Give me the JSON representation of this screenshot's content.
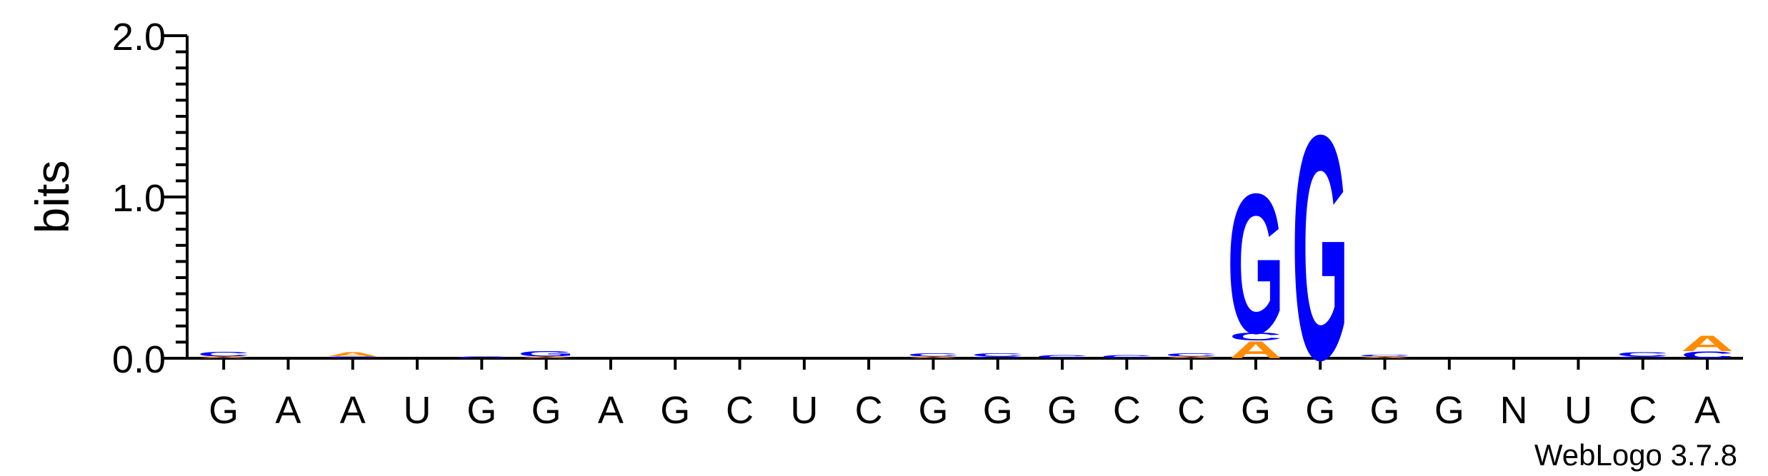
{
  "chart_data": {
    "type": "sequence-logo",
    "ylabel": "bits",
    "ylim": [
      0,
      2.0
    ],
    "yticks": [
      "0.0",
      "1.0",
      "2.0"
    ],
    "positions": [
      "G",
      "A",
      "A",
      "U",
      "G",
      "G",
      "A",
      "G",
      "C",
      "U",
      "C",
      "G",
      "G",
      "G",
      "C",
      "C",
      "G",
      "G",
      "G",
      "G",
      "N",
      "U",
      "C",
      "A"
    ],
    "colors": {
      "G": "#0000ff",
      "A": "#ff8c00",
      "C": "#0000ff",
      "U": "#0000ff"
    },
    "stacks": [
      [
        {
          "letter": "A",
          "bits": 0.012
        },
        {
          "letter": "C",
          "bits": 0.03
        }
      ],
      [],
      [
        {
          "letter": "C",
          "bits": 0.01
        },
        {
          "letter": "A",
          "bits": 0.025
        }
      ],
      [],
      [
        {
          "letter": "C",
          "bits": 0.012
        }
      ],
      [
        {
          "letter": "A",
          "bits": 0.012
        },
        {
          "letter": "G",
          "bits": 0.035
        }
      ],
      [],
      [],
      [],
      [],
      [],
      [
        {
          "letter": "A",
          "bits": 0.01
        },
        {
          "letter": "C",
          "bits": 0.02
        }
      ],
      [
        {
          "letter": "C",
          "bits": 0.012
        },
        {
          "letter": "C",
          "bits": 0.02
        }
      ],
      [
        {
          "letter": "C",
          "bits": 0.02
        }
      ],
      [
        {
          "letter": "C",
          "bits": 0.02
        }
      ],
      [
        {
          "letter": "A",
          "bits": 0.01
        },
        {
          "letter": "C",
          "bits": 0.02
        }
      ],
      [
        {
          "letter": "A",
          "bits": 0.11
        },
        {
          "letter": "C",
          "bits": 0.05
        },
        {
          "letter": "G",
          "bits": 0.89
        }
      ],
      [
        {
          "letter": "G",
          "bits": 1.43
        }
      ],
      [
        {
          "letter": "A",
          "bits": 0.01
        },
        {
          "letter": "C",
          "bits": 0.012
        }
      ],
      [],
      [],
      [],
      [
        {
          "letter": "C",
          "bits": 0.01
        },
        {
          "letter": "C",
          "bits": 0.025
        }
      ],
      [
        {
          "letter": "C",
          "bits": 0.045
        },
        {
          "letter": "A",
          "bits": 0.1
        }
      ]
    ]
  },
  "credit": "WebLogo 3.7.8"
}
